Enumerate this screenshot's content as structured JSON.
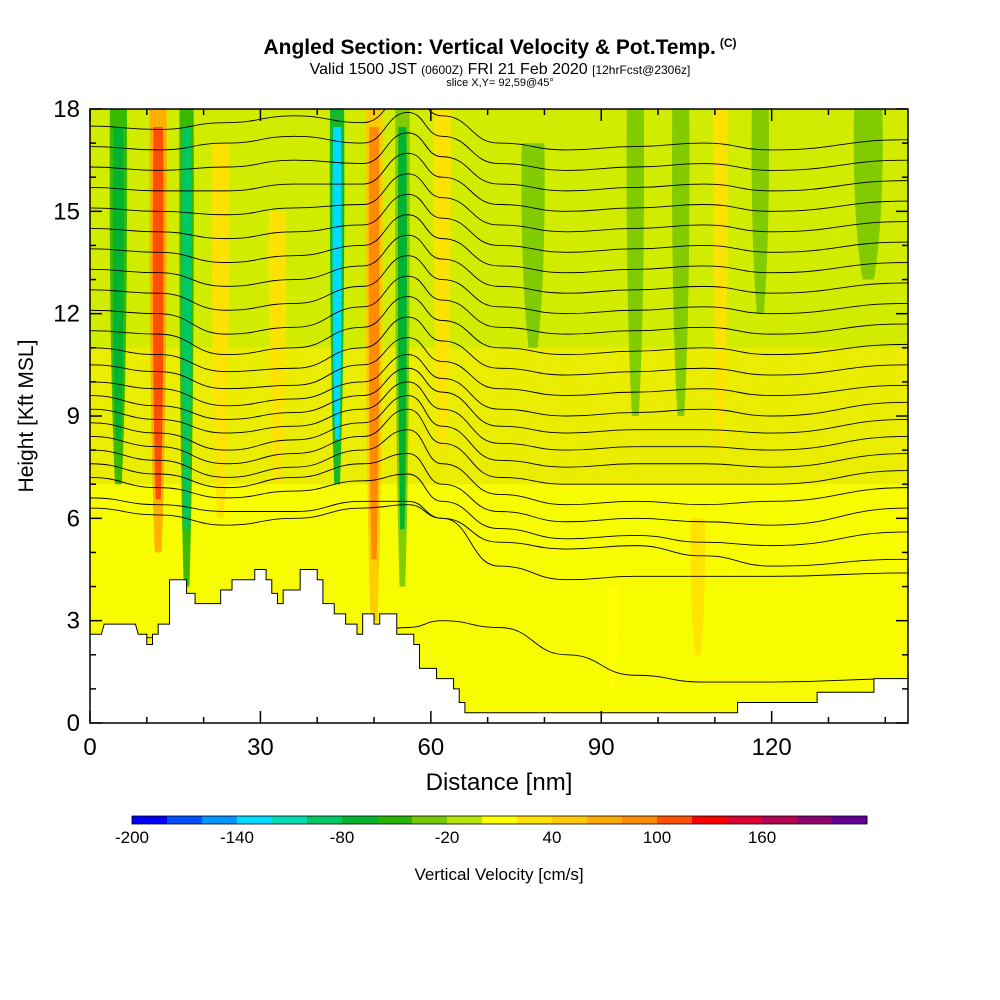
{
  "header": {
    "title": "Angled Section: Vertical Velocity & Pot.Temp.",
    "title_mark": "(C)",
    "subtitle_main": "Valid 1500 JST",
    "subtitle_zulu": "(0600Z)",
    "subtitle_date": "FRI 21 Feb 2020",
    "subtitle_fcst": "[12hrFcst@2306z]",
    "slice": "slice X,Y= 92,59@45°"
  },
  "chart_data": {
    "type": "heatmap",
    "xlabel": "Distance [nm]",
    "ylabel": "Height [Kft MSL]",
    "xlim": [
      0,
      144
    ],
    "ylim": [
      0,
      18
    ],
    "x_ticks": [
      "0",
      "30",
      "60",
      "90",
      "120"
    ],
    "y_ticks": [
      "0",
      "3",
      "6",
      "9",
      "12",
      "15",
      "18"
    ],
    "colorbar": {
      "label": "Vertical Velocity [cm/s]",
      "tick_labels": [
        "-200",
        "-140",
        "-80",
        "-20",
        "40",
        "100",
        "160"
      ],
      "levels": [
        -200,
        -180,
        -160,
        -140,
        -120,
        -100,
        -80,
        -60,
        -40,
        -20,
        0,
        20,
        40,
        60,
        80,
        100,
        120,
        140,
        160,
        180,
        200
      ],
      "colors": [
        "#0000ff",
        "#0050ff",
        "#0096ff",
        "#00dcff",
        "#00dcb4",
        "#00c864",
        "#00b432",
        "#28b400",
        "#78c800",
        "#b4e600",
        "#ffff00",
        "#ffe100",
        "#ffc800",
        "#ffaa00",
        "#ff8c00",
        "#ff5000",
        "#ff0000",
        "#dc0032",
        "#b40050",
        "#8c006e",
        "#640096"
      ]
    },
    "background_color": "#d2ec00",
    "terrain_color": "#ffffff",
    "contour_color": "#000000",
    "velocity_columns": [
      {
        "x": 5,
        "w": 3,
        "ymin": 7,
        "ymax": 18,
        "w_cm_s": -80
      },
      {
        "x": 12,
        "w": 3,
        "ymin": 5,
        "ymax": 18,
        "w_cm_s": 110
      },
      {
        "x": 17,
        "w": 2.5,
        "ymin": 4,
        "ymax": 18,
        "w_cm_s": -90
      },
      {
        "x": 23,
        "w": 3,
        "ymin": 6,
        "ymax": 17,
        "w_cm_s": 60
      },
      {
        "x": 33,
        "w": 3,
        "ymin": 7,
        "ymax": 15,
        "w_cm_s": 50
      },
      {
        "x": 43.5,
        "w": 2.5,
        "ymin": 7,
        "ymax": 18,
        "w_cm_s": -140
      },
      {
        "x": 50,
        "w": 3,
        "ymin": 3,
        "ymax": 18,
        "w_cm_s": 90
      },
      {
        "x": 55,
        "w": 2.5,
        "ymin": 4,
        "ymax": 18,
        "w_cm_s": -70
      },
      {
        "x": 62,
        "w": 3,
        "ymin": 8,
        "ymax": 18,
        "w_cm_s": 60
      },
      {
        "x": 78,
        "w": 4,
        "ymin": 11,
        "ymax": 17,
        "w_cm_s": -40
      },
      {
        "x": 96,
        "w": 3,
        "ymin": 9,
        "ymax": 18,
        "w_cm_s": -60
      },
      {
        "x": 104,
        "w": 3,
        "ymin": 9,
        "ymax": 18,
        "w_cm_s": -40
      },
      {
        "x": 111,
        "w": 2.5,
        "ymin": 8,
        "ymax": 18,
        "w_cm_s": 50
      },
      {
        "x": 118,
        "w": 3,
        "ymin": 12,
        "ymax": 18,
        "w_cm_s": -40
      },
      {
        "x": 137,
        "w": 5,
        "ymin": 13,
        "ymax": 18,
        "w_cm_s": -40
      },
      {
        "x": 92,
        "w": 2,
        "ymin": 1,
        "ymax": 4,
        "w_cm_s": 20
      },
      {
        "x": 107,
        "w": 2.5,
        "ymin": 2,
        "ymax": 6,
        "w_cm_s": 60
      }
    ],
    "terrain": [
      [
        0,
        2.6
      ],
      [
        2,
        2.6
      ],
      [
        2.5,
        2.9
      ],
      [
        8,
        2.9
      ],
      [
        8.5,
        2.6
      ],
      [
        10,
        2.6
      ],
      [
        10,
        2.3
      ],
      [
        11,
        2.3
      ],
      [
        11,
        2.6
      ],
      [
        12,
        2.6
      ],
      [
        12,
        2.9
      ],
      [
        14,
        2.9
      ],
      [
        14,
        4.2
      ],
      [
        17,
        4.2
      ],
      [
        17,
        3.8
      ],
      [
        18.5,
        3.8
      ],
      [
        18.5,
        3.5
      ],
      [
        23,
        3.5
      ],
      [
        23,
        3.9
      ],
      [
        25,
        3.9
      ],
      [
        25,
        4.2
      ],
      [
        29,
        4.2
      ],
      [
        29,
        4.5
      ],
      [
        31,
        4.5
      ],
      [
        31,
        4.2
      ],
      [
        32,
        4.2
      ],
      [
        32,
        3.8
      ],
      [
        33,
        3.8
      ],
      [
        33,
        3.5
      ],
      [
        34,
        3.5
      ],
      [
        34,
        3.9
      ],
      [
        37,
        3.9
      ],
      [
        37,
        4.5
      ],
      [
        40,
        4.5
      ],
      [
        40,
        4.2
      ],
      [
        41,
        4.2
      ],
      [
        41,
        3.5
      ],
      [
        43,
        3.5
      ],
      [
        43,
        3.2
      ],
      [
        45,
        3.2
      ],
      [
        45,
        2.9
      ],
      [
        47,
        2.9
      ],
      [
        47,
        2.6
      ],
      [
        48,
        2.6
      ],
      [
        48,
        3.2
      ],
      [
        50,
        3.2
      ],
      [
        50,
        2.9
      ],
      [
        51,
        2.9
      ],
      [
        51,
        3.2
      ],
      [
        54,
        3.2
      ],
      [
        54,
        2.6
      ],
      [
        57,
        2.6
      ],
      [
        57,
        2.3
      ],
      [
        58,
        2.3
      ],
      [
        58,
        1.6
      ],
      [
        61,
        1.6
      ],
      [
        61,
        1.3
      ],
      [
        64,
        1.3
      ],
      [
        64,
        1.0
      ],
      [
        65,
        1.0
      ],
      [
        65,
        0.6
      ],
      [
        66,
        0.6
      ],
      [
        66,
        0.3
      ],
      [
        114,
        0.3
      ],
      [
        114,
        0.6
      ],
      [
        128,
        0.6
      ],
      [
        128,
        0.9
      ],
      [
        138,
        0.9
      ],
      [
        138,
        1.3
      ],
      [
        144,
        1.3
      ]
    ],
    "isotherms": [
      {
        "y": [
          2.5,
          2.5,
          2.6,
          2.6,
          2.6,
          2.8,
          3.0,
          2.8,
          2.0,
          1.4,
          1.2,
          1.2,
          1.3
        ]
      },
      {
        "y": [
          6.3,
          6.1,
          5.8,
          6.0,
          6.3,
          6.4,
          6.0,
          4.6,
          4.2,
          4.3,
          4.3,
          4.3,
          4.4
        ]
      },
      {
        "y": [
          6.6,
          6.4,
          6.2,
          6.2,
          6.5,
          6.5,
          6.0,
          5.3,
          5.1,
          5.2,
          4.9,
          4.6,
          4.8
        ]
      },
      {
        "y": [
          7.2,
          6.9,
          6.6,
          6.8,
          7.1,
          7.3,
          6.5,
          5.7,
          5.4,
          5.5,
          5.3,
          5.2,
          5.6
        ]
      },
      {
        "y": [
          7.6,
          7.3,
          6.9,
          7.2,
          7.6,
          7.9,
          7.0,
          6.2,
          5.9,
          6.0,
          5.9,
          5.8,
          6.3
        ]
      },
      {
        "y": [
          8.0,
          7.7,
          7.2,
          7.5,
          8.0,
          8.6,
          7.6,
          6.7,
          6.4,
          6.5,
          6.4,
          6.5,
          6.9
        ]
      },
      {
        "y": [
          8.4,
          8.1,
          7.6,
          7.9,
          8.4,
          9.2,
          8.2,
          7.2,
          7.0,
          7.0,
          7.0,
          7.0,
          7.4
        ]
      },
      {
        "y": [
          8.8,
          8.5,
          8.0,
          8.3,
          8.8,
          9.6,
          8.7,
          7.7,
          7.5,
          7.6,
          7.6,
          7.5,
          7.9
        ]
      },
      {
        "y": [
          9.2,
          8.9,
          8.5,
          8.7,
          9.2,
          10.0,
          9.2,
          8.2,
          8.0,
          8.1,
          8.1,
          8.0,
          8.4
        ]
      },
      {
        "y": [
          9.6,
          9.3,
          8.9,
          9.1,
          9.6,
          10.4,
          9.7,
          8.7,
          8.5,
          8.6,
          8.6,
          8.5,
          8.9
        ]
      },
      {
        "y": [
          10.0,
          9.8,
          9.3,
          9.5,
          10.0,
          10.8,
          10.1,
          9.2,
          9.0,
          9.1,
          9.2,
          9.0,
          9.4
        ]
      },
      {
        "y": [
          10.5,
          10.3,
          9.8,
          9.9,
          10.5,
          11.3,
          10.6,
          9.8,
          9.6,
          9.7,
          9.8,
          9.6,
          9.9
        ]
      },
      {
        "y": [
          11.0,
          10.8,
          10.3,
          10.4,
          11.0,
          11.9,
          11.2,
          10.4,
          10.2,
          10.3,
          10.4,
          10.2,
          10.5
        ]
      },
      {
        "y": [
          11.5,
          11.4,
          10.8,
          11.0,
          11.6,
          12.5,
          11.8,
          11.0,
          10.8,
          10.9,
          11.0,
          10.8,
          11.1
        ]
      },
      {
        "y": [
          12.1,
          12.0,
          11.4,
          11.6,
          12.2,
          13.1,
          12.4,
          11.6,
          11.4,
          11.5,
          11.6,
          11.4,
          11.7
        ]
      },
      {
        "y": [
          12.7,
          12.6,
          12.1,
          12.3,
          12.8,
          13.7,
          13.0,
          12.2,
          12.0,
          12.1,
          12.2,
          12.0,
          12.3
        ]
      },
      {
        "y": [
          13.3,
          13.2,
          12.8,
          13.0,
          13.4,
          14.3,
          13.6,
          12.8,
          12.6,
          12.7,
          12.8,
          12.6,
          12.9
        ]
      },
      {
        "y": [
          13.9,
          13.8,
          13.5,
          13.7,
          14.0,
          14.9,
          14.2,
          13.4,
          13.2,
          13.3,
          13.4,
          13.2,
          13.5
        ]
      },
      {
        "y": [
          14.5,
          14.4,
          14.2,
          14.4,
          14.6,
          15.5,
          14.8,
          14.0,
          13.8,
          13.9,
          14.0,
          13.8,
          14.1
        ]
      },
      {
        "y": [
          15.1,
          15.0,
          14.9,
          15.1,
          15.2,
          16.1,
          15.4,
          14.6,
          14.4,
          14.5,
          14.6,
          14.4,
          14.7
        ]
      },
      {
        "y": [
          15.7,
          15.6,
          15.6,
          15.8,
          15.8,
          16.7,
          16.0,
          15.2,
          15.0,
          15.1,
          15.2,
          15.0,
          15.3
        ]
      },
      {
        "y": [
          16.3,
          16.2,
          16.3,
          16.5,
          16.4,
          17.3,
          16.6,
          15.8,
          15.6,
          15.7,
          15.8,
          15.6,
          15.9
        ]
      },
      {
        "y": [
          16.9,
          16.8,
          17.0,
          17.2,
          17.0,
          17.9,
          17.2,
          16.4,
          16.2,
          16.3,
          16.4,
          16.2,
          16.5
        ]
      },
      {
        "y": [
          17.5,
          17.4,
          17.6,
          17.8,
          17.6,
          18.4,
          17.8,
          17.0,
          16.8,
          16.9,
          17.0,
          16.8,
          17.1
        ]
      }
    ],
    "isotherm_x": [
      0,
      12,
      24,
      36,
      48,
      56,
      62,
      72,
      84,
      96,
      108,
      120,
      144
    ]
  }
}
